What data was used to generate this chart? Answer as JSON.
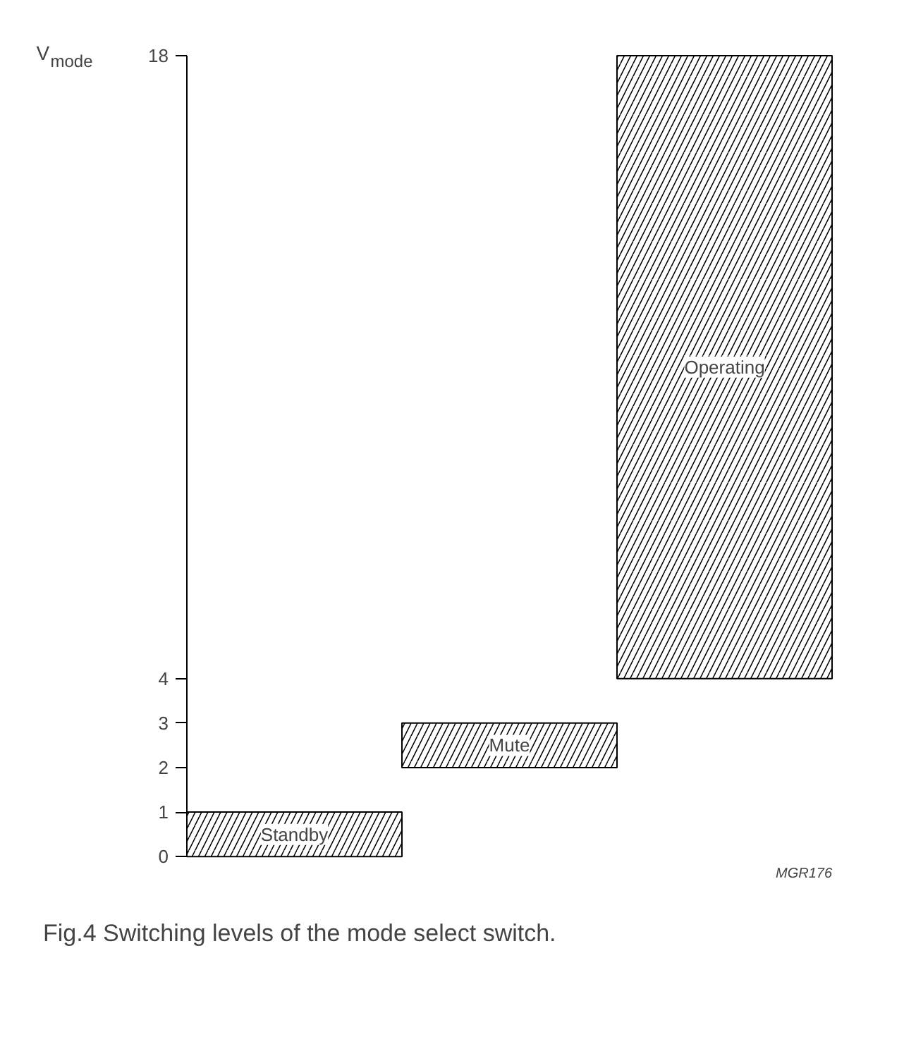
{
  "chart_data": {
    "type": "bar",
    "ylabel": "V$_{mode}$",
    "categories": [
      "Standby",
      "Mute",
      "Operating"
    ],
    "values": [
      1,
      1,
      14
    ],
    "base": [
      0,
      2,
      4
    ],
    "color": "#000000",
    "ylim": [
      0,
      18
    ],
    "yticks": [
      0,
      1,
      2,
      3,
      4,
      18
    ],
    "annotations": [
      "MGR176",
      "Fig.4  Switching levels of the mode select switch."
    ]
  }
}
